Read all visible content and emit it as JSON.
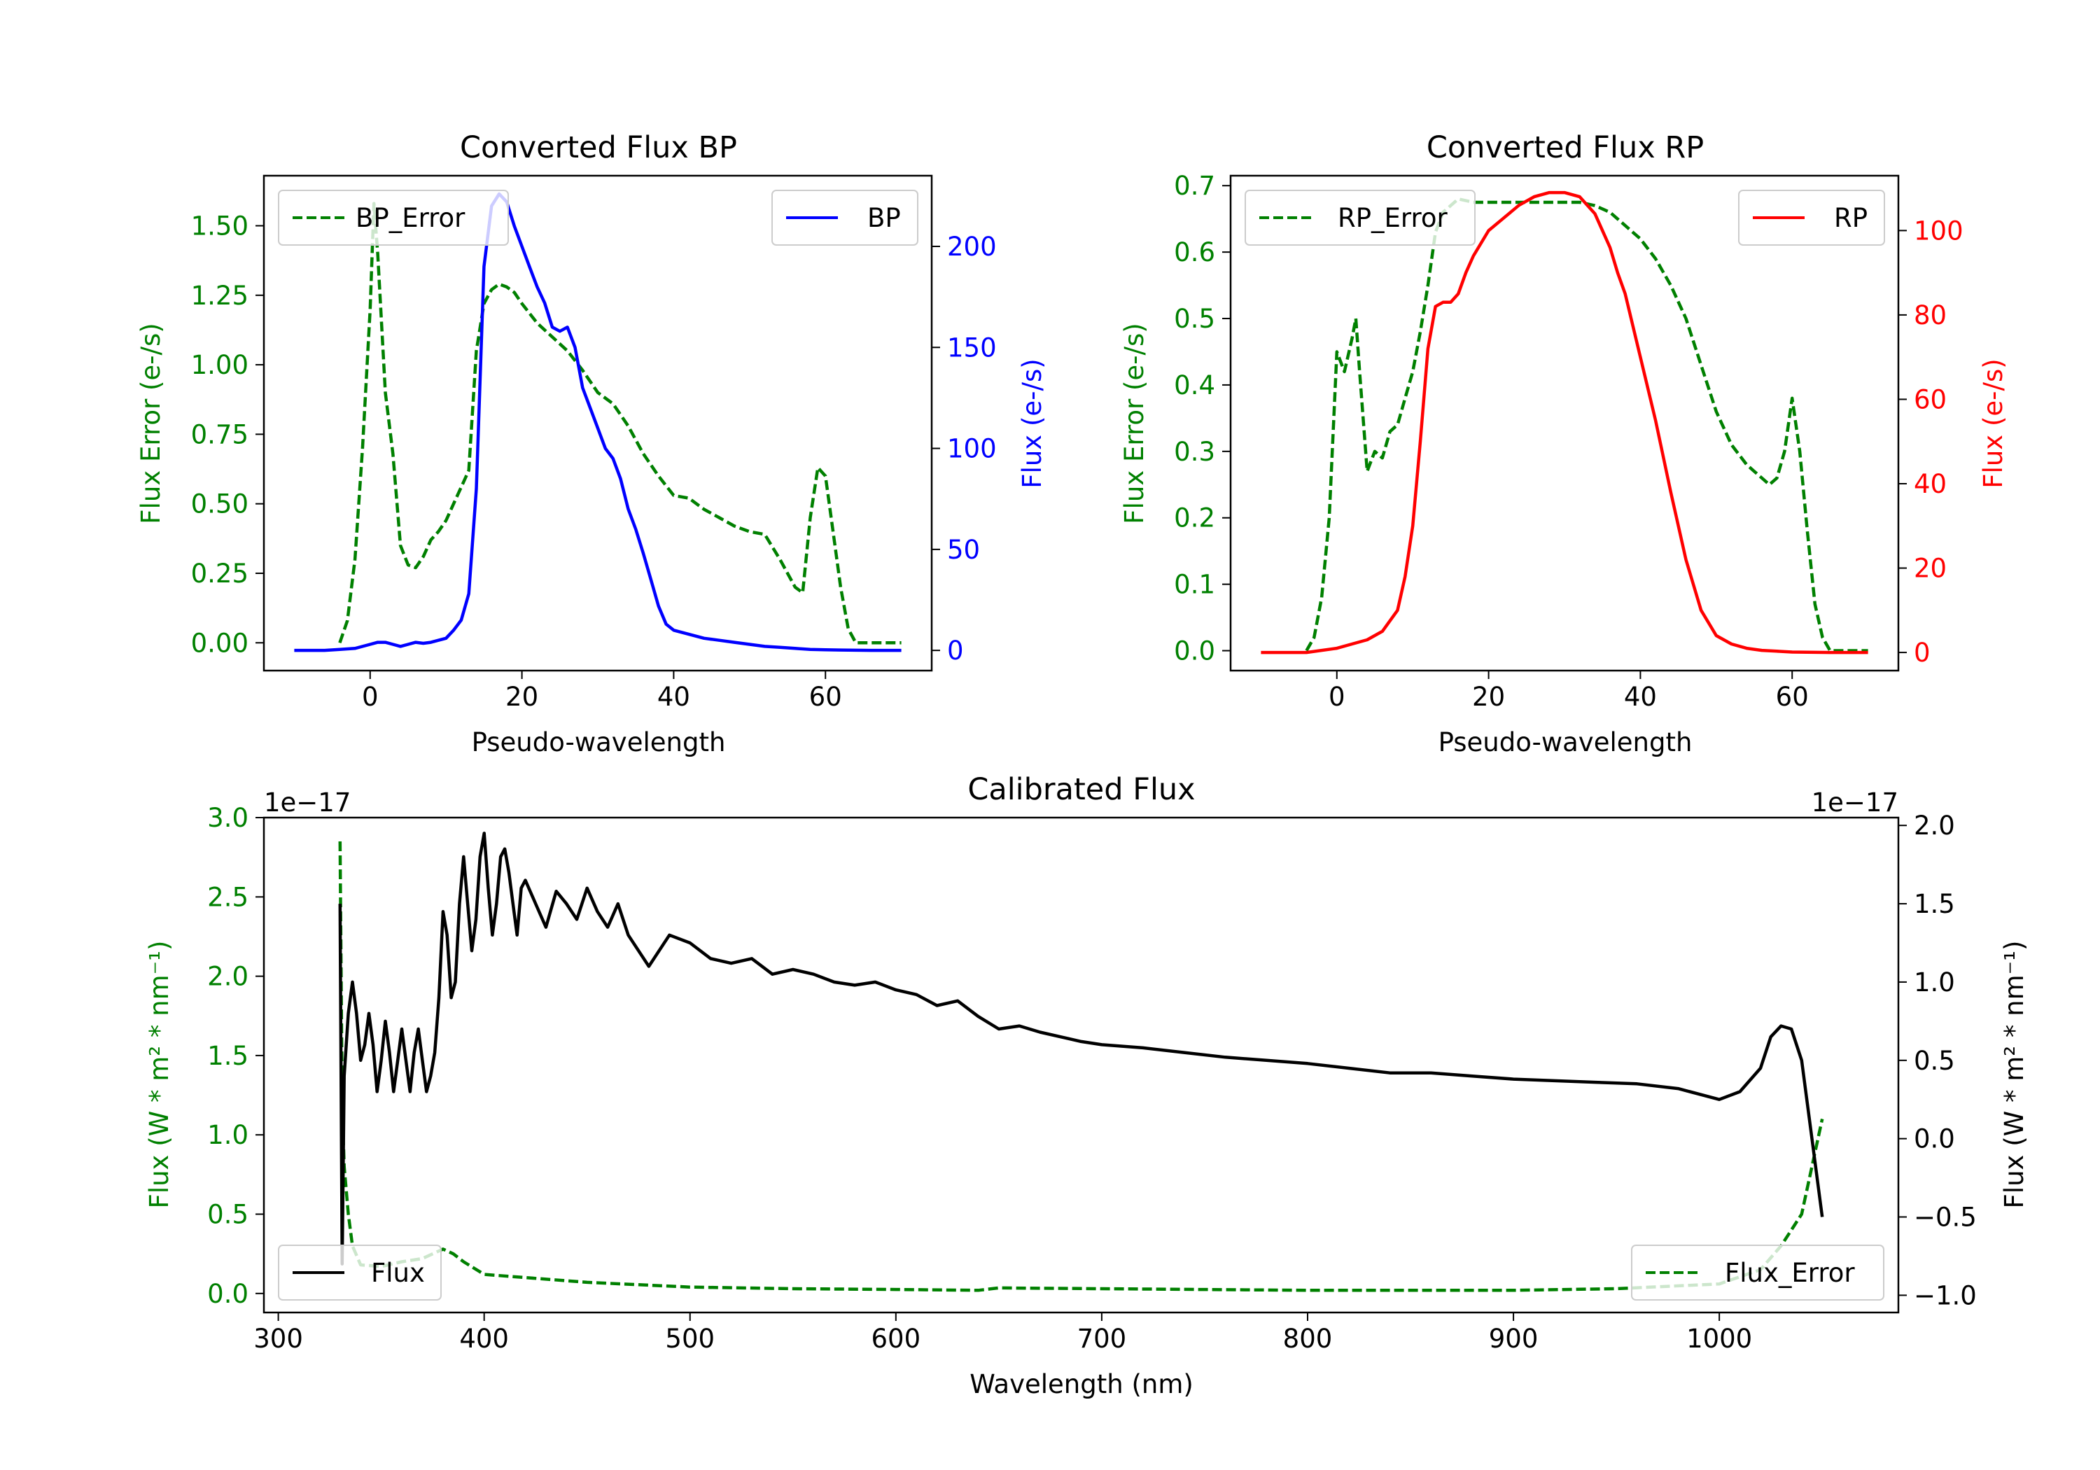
{
  "chart_data": [
    {
      "id": "bp",
      "type": "line",
      "title": "Converted Flux BP",
      "xlabel": "Pseudo-wavelength",
      "ylabel_left": "Flux Error (e-/s)",
      "ylabel_right": "Flux (e-/s)",
      "left_color": "#008000",
      "right_color": "#0000ff",
      "xlim": [
        -14,
        74
      ],
      "ylim_left": [
        -0.1,
        1.68
      ],
      "ylim_right": [
        -10,
        235
      ],
      "xticks": [
        0,
        20,
        40,
        60
      ],
      "xtick_labels": [
        "0",
        "20",
        "40",
        "60"
      ],
      "yticks_left": [
        0,
        0.25,
        0.5,
        0.75,
        1.0,
        1.25,
        1.5
      ],
      "ytick_labels_left": [
        "0.00",
        "0.25",
        "0.50",
        "0.75",
        "1.00",
        "1.25",
        "1.50"
      ],
      "yticks_right": [
        0,
        50,
        100,
        150,
        200
      ],
      "ytick_labels_right": [
        "0",
        "50",
        "100",
        "150",
        "200"
      ],
      "legend_left": {
        "label": "BP_Error",
        "position": "upper left"
      },
      "legend_right": {
        "label": "BP",
        "position": "upper right"
      },
      "series": [
        {
          "name": "BP_Error",
          "axis": "left",
          "color": "#008000",
          "style": "dashed",
          "x": [
            -4,
            -3,
            -2,
            -1,
            0,
            0.5,
            1,
            2,
            3,
            4,
            5,
            6,
            7,
            8,
            9,
            10,
            11,
            12,
            13,
            14,
            15,
            16,
            17,
            18,
            19,
            20,
            22,
            24,
            26,
            28,
            30,
            32,
            34,
            36,
            38,
            40,
            42,
            44,
            46,
            48,
            50,
            52,
            54,
            56,
            57,
            58,
            59,
            60,
            61,
            62,
            63,
            64,
            65,
            70
          ],
          "y": [
            0,
            0.08,
            0.3,
            0.7,
            1.2,
            1.58,
            1.4,
            0.9,
            0.68,
            0.35,
            0.28,
            0.27,
            0.31,
            0.37,
            0.4,
            0.44,
            0.5,
            0.56,
            0.62,
            1.05,
            1.22,
            1.27,
            1.29,
            1.28,
            1.26,
            1.22,
            1.15,
            1.1,
            1.05,
            0.98,
            0.9,
            0.86,
            0.78,
            0.68,
            0.6,
            0.53,
            0.52,
            0.48,
            0.45,
            0.42,
            0.4,
            0.39,
            0.3,
            0.2,
            0.18,
            0.45,
            0.63,
            0.6,
            0.4,
            0.2,
            0.05,
            0,
            0,
            0
          ]
        },
        {
          "name": "BP",
          "axis": "right",
          "color": "#0000ff",
          "style": "solid",
          "x": [
            -10,
            -6,
            -4,
            -2,
            0,
            1,
            2,
            3,
            4,
            5,
            6,
            7,
            8,
            9,
            10,
            11,
            12,
            13,
            14,
            15,
            16,
            17,
            18,
            19,
            20,
            21,
            22,
            23,
            24,
            25,
            26,
            27,
            28,
            29,
            30,
            31,
            32,
            33,
            34,
            35,
            36,
            37,
            38,
            39,
            40,
            42,
            44,
            46,
            48,
            50,
            52,
            54,
            56,
            58,
            60,
            62,
            66,
            70
          ],
          "y": [
            0,
            0,
            0.5,
            1,
            3,
            4,
            4,
            3,
            2,
            3,
            4,
            3.5,
            4,
            5,
            6,
            10,
            15,
            28,
            80,
            190,
            220,
            226,
            222,
            210,
            200,
            190,
            180,
            172,
            160,
            158,
            160,
            150,
            130,
            120,
            110,
            100,
            95,
            85,
            70,
            60,
            48,
            35,
            22,
            13,
            10,
            8,
            6,
            5,
            4,
            3,
            2,
            1.5,
            1,
            0.5,
            0.3,
            0.2,
            0,
            0
          ]
        }
      ]
    },
    {
      "id": "rp",
      "type": "line",
      "title": "Converted Flux RP",
      "xlabel": "Pseudo-wavelength",
      "ylabel_left": "Flux Error (e-/s)",
      "ylabel_right": "Flux (e-/s)",
      "left_color": "#008000",
      "right_color": "#ff0000",
      "xlim": [
        -14,
        74
      ],
      "ylim_left": [
        -0.03,
        0.715
      ],
      "ylim_right": [
        -4.3,
        113
      ],
      "xticks": [
        0,
        20,
        40,
        60
      ],
      "xtick_labels": [
        "0",
        "20",
        "40",
        "60"
      ],
      "yticks_left": [
        0,
        0.1,
        0.2,
        0.3,
        0.4,
        0.5,
        0.6,
        0.7
      ],
      "ytick_labels_left": [
        "0.0",
        "0.1",
        "0.2",
        "0.3",
        "0.4",
        "0.5",
        "0.6",
        "0.7"
      ],
      "yticks_right": [
        0,
        20,
        40,
        60,
        80,
        100
      ],
      "ytick_labels_right": [
        "0",
        "20",
        "40",
        "60",
        "80",
        "100"
      ],
      "legend_left": {
        "label": "RP_Error",
        "position": "upper left"
      },
      "legend_right": {
        "label": "RP",
        "position": "upper right"
      },
      "series": [
        {
          "name": "RP_Error",
          "axis": "left",
          "color": "#008000",
          "style": "dashed",
          "x": [
            -4,
            -3,
            -2,
            -1,
            0,
            1,
            2,
            2.5,
            3,
            4,
            5,
            6,
            7,
            8,
            9,
            10,
            11,
            12,
            13,
            14,
            15,
            16,
            18,
            20,
            22,
            24,
            26,
            28,
            30,
            32,
            34,
            36,
            38,
            40,
            42,
            44,
            46,
            48,
            50,
            52,
            54,
            55,
            56,
            57,
            58,
            59,
            60,
            61,
            62,
            63,
            64,
            65,
            70
          ],
          "y": [
            0,
            0.02,
            0.08,
            0.2,
            0.45,
            0.42,
            0.47,
            0.5,
            0.42,
            0.27,
            0.3,
            0.29,
            0.33,
            0.34,
            0.38,
            0.42,
            0.48,
            0.55,
            0.63,
            0.66,
            0.67,
            0.68,
            0.675,
            0.675,
            0.675,
            0.675,
            0.675,
            0.675,
            0.675,
            0.675,
            0.67,
            0.66,
            0.64,
            0.62,
            0.59,
            0.55,
            0.5,
            0.43,
            0.36,
            0.31,
            0.28,
            0.27,
            0.26,
            0.25,
            0.26,
            0.3,
            0.38,
            0.3,
            0.18,
            0.07,
            0.02,
            0,
            0
          ]
        },
        {
          "name": "RP",
          "axis": "right",
          "color": "#ff0000",
          "style": "solid",
          "x": [
            -10,
            -4,
            0,
            2,
            4,
            6,
            8,
            9,
            10,
            11,
            12,
            13,
            14,
            15,
            16,
            17,
            18,
            19,
            20,
            22,
            24,
            26,
            28,
            29,
            30,
            32,
            34,
            36,
            37,
            38,
            40,
            42,
            44,
            46,
            48,
            50,
            52,
            54,
            56,
            58,
            60,
            65,
            70
          ],
          "y": [
            0,
            0,
            1,
            2,
            3,
            5,
            10,
            18,
            30,
            50,
            72,
            82,
            83,
            83,
            85,
            90,
            94,
            97,
            100,
            103,
            106,
            108,
            109,
            109,
            109,
            108,
            104,
            96,
            90,
            85,
            70,
            55,
            38,
            22,
            10,
            4,
            2,
            1,
            0.5,
            0.3,
            0.1,
            0,
            0
          ]
        }
      ]
    },
    {
      "id": "cal",
      "type": "line",
      "title": "Calibrated Flux",
      "xlabel": "Wavelength (nm)",
      "ylabel_left": "Flux (W * m² * nm⁻¹)",
      "ylabel_right": "Flux (W * m² * nm⁻¹)",
      "left_color": "#008000",
      "right_color": "#000000",
      "offset_text_left": "1e−17",
      "offset_text_right": "1e−17",
      "xlim": [
        293,
        1087
      ],
      "ylim_left": [
        -0.12,
        3.0
      ],
      "ylim_right": [
        -1.11,
        2.05
      ],
      "xticks": [
        300,
        400,
        500,
        600,
        700,
        800,
        900,
        1000
      ],
      "xtick_labels": [
        "300",
        "400",
        "500",
        "600",
        "700",
        "800",
        "900",
        "1000"
      ],
      "yticks_left": [
        0,
        0.5,
        1.0,
        1.5,
        2.0,
        2.5,
        3.0
      ],
      "ytick_labels_left": [
        "0.0",
        "0.5",
        "1.0",
        "1.5",
        "2.0",
        "2.5",
        "3.0"
      ],
      "yticks_right": [
        -1.0,
        -0.5,
        0,
        0.5,
        1.0,
        1.5,
        2.0
      ],
      "ytick_labels_right": [
        "−1.0",
        "−0.5",
        "0.0",
        "0.5",
        "1.0",
        "1.5",
        "2.0"
      ],
      "legend_left": {
        "label": "Flux",
        "position": "lower left"
      },
      "legend_right": {
        "label": "Flux_Error",
        "position": "lower right"
      },
      "series": [
        {
          "name": "Flux_Error",
          "axis": "left",
          "color": "#008000",
          "style": "dashed",
          "x": [
            330,
            331,
            332,
            334,
            336,
            340,
            350,
            360,
            370,
            375,
            380,
            385,
            390,
            400,
            420,
            450,
            500,
            550,
            600,
            640,
            650,
            700,
            800,
            900,
            950,
            1000,
            1020,
            1030,
            1035,
            1040,
            1045,
            1050
          ],
          "y": [
            2.85,
            1.2,
            0.8,
            0.5,
            0.3,
            0.18,
            0.17,
            0.2,
            0.22,
            0.25,
            0.28,
            0.25,
            0.2,
            0.12,
            0.1,
            0.07,
            0.04,
            0.03,
            0.025,
            0.02,
            0.035,
            0.03,
            0.02,
            0.02,
            0.03,
            0.06,
            0.15,
            0.3,
            0.4,
            0.5,
            0.8,
            1.1
          ]
        },
        {
          "name": "Flux",
          "axis": "right",
          "color": "#000000",
          "style": "solid",
          "x": [
            330,
            331,
            332,
            334,
            336,
            338,
            340,
            342,
            344,
            346,
            348,
            350,
            352,
            354,
            356,
            358,
            360,
            362,
            364,
            366,
            368,
            370,
            372,
            374,
            376,
            378,
            380,
            382,
            384,
            386,
            388,
            390,
            392,
            394,
            396,
            398,
            400,
            402,
            404,
            406,
            408,
            410,
            412,
            414,
            416,
            418,
            420,
            425,
            430,
            435,
            440,
            445,
            450,
            455,
            460,
            465,
            470,
            480,
            490,
            500,
            510,
            520,
            530,
            540,
            550,
            560,
            570,
            580,
            590,
            600,
            610,
            620,
            630,
            640,
            650,
            660,
            670,
            680,
            690,
            700,
            720,
            740,
            760,
            780,
            800,
            820,
            840,
            860,
            880,
            900,
            920,
            940,
            960,
            980,
            1000,
            1010,
            1020,
            1025,
            1030,
            1035,
            1040,
            1045,
            1050
          ],
          "y": [
            1.5,
            -0.8,
            0.4,
            0.8,
            1.0,
            0.8,
            0.5,
            0.6,
            0.8,
            0.6,
            0.3,
            0.5,
            0.75,
            0.55,
            0.3,
            0.5,
            0.7,
            0.5,
            0.3,
            0.55,
            0.7,
            0.5,
            0.3,
            0.4,
            0.55,
            0.9,
            1.45,
            1.3,
            0.9,
            1.0,
            1.5,
            1.8,
            1.5,
            1.2,
            1.4,
            1.8,
            1.95,
            1.6,
            1.3,
            1.5,
            1.8,
            1.85,
            1.7,
            1.5,
            1.3,
            1.6,
            1.65,
            1.5,
            1.35,
            1.58,
            1.5,
            1.4,
            1.6,
            1.45,
            1.35,
            1.5,
            1.3,
            1.1,
            1.3,
            1.25,
            1.15,
            1.12,
            1.15,
            1.05,
            1.08,
            1.05,
            1.0,
            0.98,
            1.0,
            0.95,
            0.92,
            0.85,
            0.88,
            0.78,
            0.7,
            0.72,
            0.68,
            0.65,
            0.62,
            0.6,
            0.58,
            0.55,
            0.52,
            0.5,
            0.48,
            0.45,
            0.42,
            0.42,
            0.4,
            0.38,
            0.37,
            0.36,
            0.35,
            0.32,
            0.25,
            0.3,
            0.45,
            0.65,
            0.72,
            0.7,
            0.5,
            0.0,
            -0.5
          ]
        }
      ]
    }
  ]
}
